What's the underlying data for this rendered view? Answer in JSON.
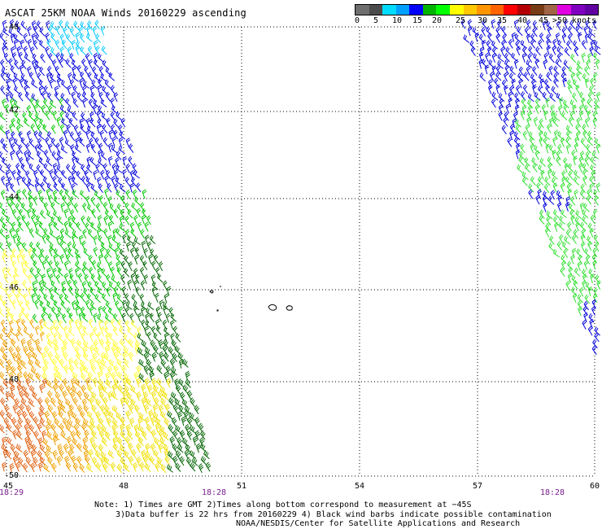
{
  "title": "ASCAT 25KM NOAA Winds 20160229 ascending",
  "colorbar": {
    "colors": [
      "#6e6e6e",
      "#4b4b4b",
      "#00dcff",
      "#00a0ff",
      "#0000ff",
      "#00b400",
      "#00ff00",
      "#ffff00",
      "#ffc800",
      "#ff9600",
      "#ff6400",
      "#ff0000",
      "#b40000",
      "#783c14",
      "#a06446",
      "#e000e0",
      "#8000c0",
      "#6000a0"
    ],
    "labels": [
      "0",
      "5",
      "10",
      "15",
      "20",
      "25",
      "30",
      "35",
      "40",
      "45",
      ">50 knots"
    ]
  },
  "lat_labels": [
    "-40",
    "-42",
    "-44",
    "-46",
    "-48",
    "-50"
  ],
  "lon_labels": [
    "45",
    "48",
    "51",
    "54",
    "57",
    "60"
  ],
  "time_labels": [
    "18:29",
    "18:28",
    "18:28"
  ],
  "notes": [
    "Note: 1) Times are GMT 2)Times along bottom correspond to measurement at −45S",
    "3)Data buffer is 22 hrs from 20160229 4) Black wind barbs indicate possible contamination",
    "NOAA/NESDIS/Center for Satellite Applications and Research"
  ],
  "swath_colors": {
    "cyan": "#00c8ff",
    "blue": "#0000dc",
    "green": "#00c800",
    "dark_green": "#006400",
    "lime": "#30e030",
    "yellow": "#f0e000",
    "pale_yellow": "#ffff30",
    "orange": "#f0a000",
    "dark_orange": "#e06010"
  }
}
